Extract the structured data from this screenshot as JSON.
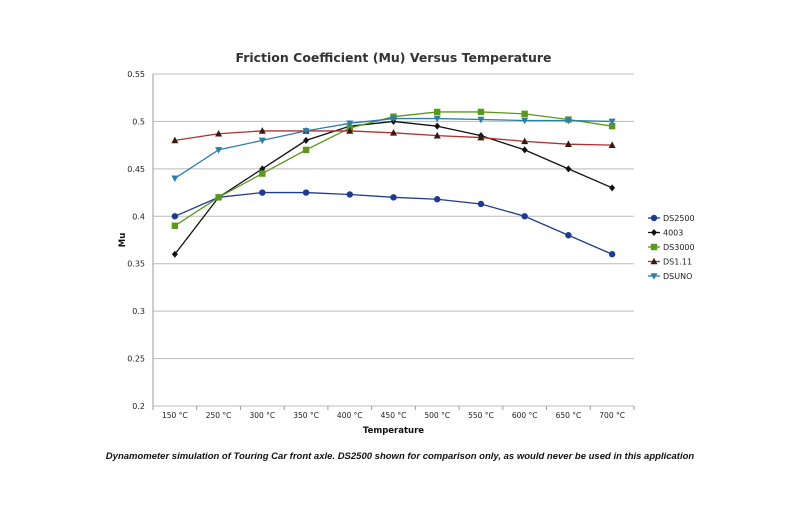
{
  "chart_data": {
    "type": "line",
    "title": "Friction Coefficient (Mu) Versus Temperature",
    "xlabel": "Temperature",
    "ylabel": "Mu",
    "ylim": [
      0.2,
      0.55
    ],
    "yticks": [
      "0.2",
      "0.25",
      "0.3",
      "0.35",
      "0.4",
      "0.45",
      "0.5",
      "0.55"
    ],
    "grid": true,
    "legend": "right",
    "categories": [
      "150 °C",
      "250 °C",
      "300 °C",
      "350 °C",
      "400 °C",
      "450 °C",
      "500 °C",
      "550 °C",
      "600 °C",
      "650 °C",
      "700 °C"
    ],
    "series": [
      {
        "name": "DS2500",
        "color": "#1f3a93",
        "marker": "circle",
        "values": [
          0.4,
          0.42,
          0.425,
          0.425,
          0.423,
          0.42,
          0.418,
          0.413,
          0.4,
          0.38,
          0.36
        ]
      },
      {
        "name": "4003",
        "color": "#111111",
        "marker": "diamond",
        "values": [
          0.36,
          0.42,
          0.45,
          0.48,
          0.495,
          0.5,
          0.495,
          0.485,
          0.47,
          0.45,
          0.43
        ]
      },
      {
        "name": "DS3000",
        "color": "#5a9a1a",
        "marker": "square",
        "values": [
          0.39,
          0.42,
          0.445,
          0.47,
          0.493,
          0.505,
          0.51,
          0.51,
          0.508,
          0.502,
          0.495
        ]
      },
      {
        "name": "DS1.11",
        "color": "#3a1a10",
        "linecolor": "#b03030",
        "marker": "triangle",
        "values": [
          0.48,
          0.487,
          0.49,
          0.49,
          0.49,
          0.488,
          0.485,
          0.483,
          0.479,
          0.476,
          0.475
        ]
      },
      {
        "name": "DSUNO",
        "color": "#2a7fa8",
        "marker": "triangle-down",
        "values": [
          0.44,
          0.47,
          0.48,
          0.49,
          0.498,
          0.503,
          0.503,
          0.502,
          0.501,
          0.501,
          0.5
        ]
      }
    ]
  },
  "caption": "Dynamometer simulation of Touring Car front axle. DS2500 shown for comparison only, as would never be used in this application"
}
